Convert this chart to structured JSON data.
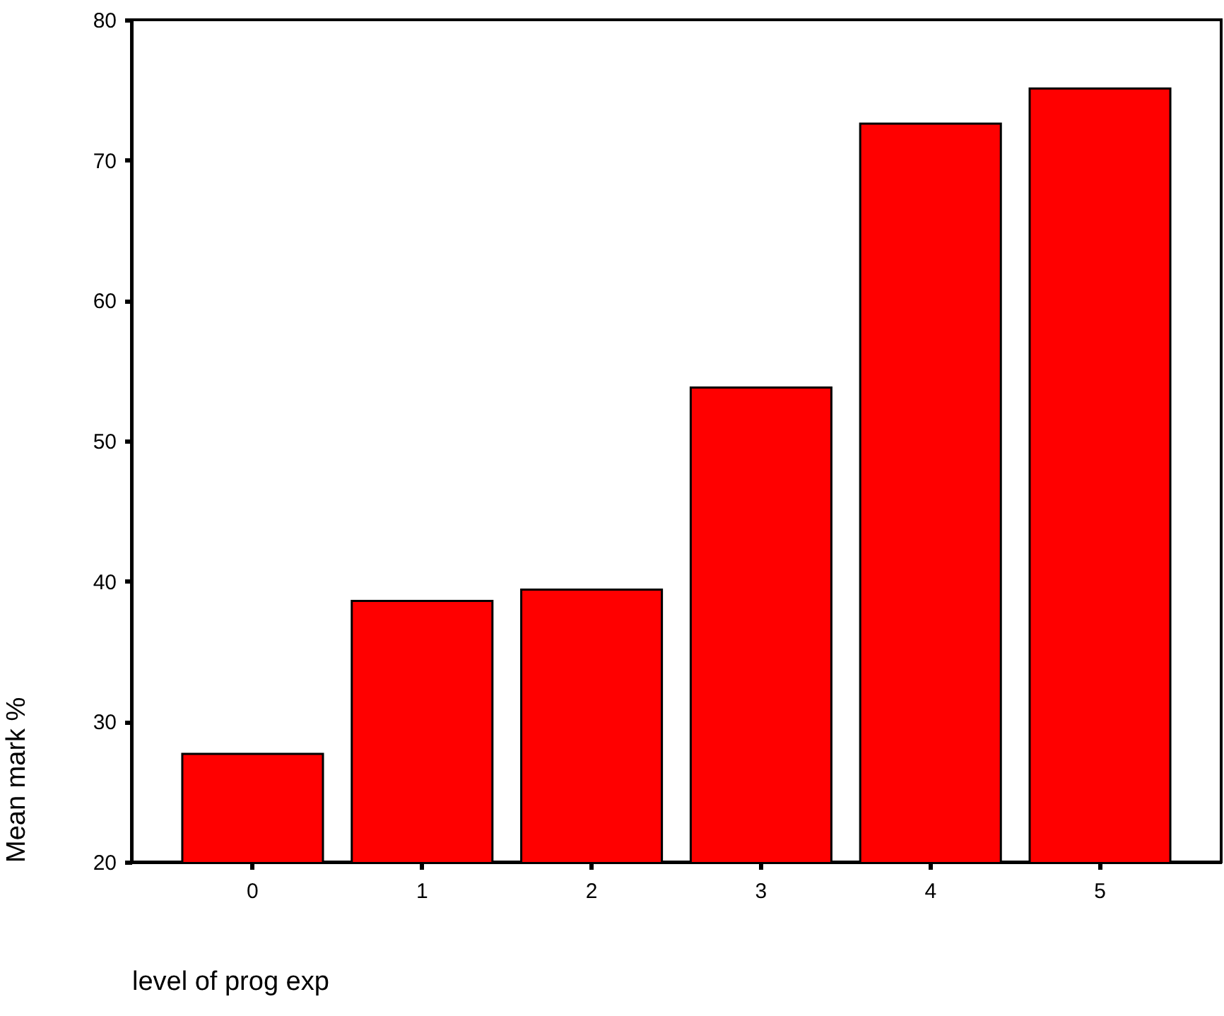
{
  "chart_data": {
    "type": "bar",
    "xlabel": "level of prog exp",
    "ylabel": "Mean mark %",
    "categories": [
      "0",
      "1",
      "2",
      "3",
      "4",
      "5"
    ],
    "values": [
      27.7,
      38.6,
      39.4,
      53.8,
      72.6,
      75.1
    ],
    "color": "#ff0000",
    "ylim": [
      20,
      80
    ],
    "yticks": [
      20,
      30,
      40,
      50,
      60,
      70,
      80
    ]
  }
}
